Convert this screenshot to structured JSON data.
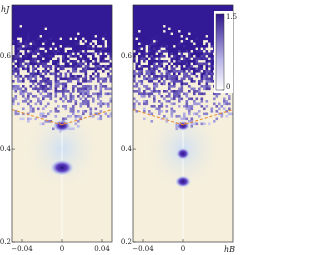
{
  "chart_data": [
    {
      "type": "heatmap",
      "ylabel": "hJ",
      "xlim": [
        -0.05,
        0.05
      ],
      "ylim": [
        0.2,
        0.71
      ],
      "xticks": [
        {
          "value": -0.04,
          "label": "−0.04"
        },
        0,
        0.04
      ],
      "yticks": [
        0.2,
        0.4,
        0.6
      ]
    },
    {
      "type": "heatmap",
      "xlabel": "hB",
      "xlim": [
        -0.05,
        0.05
      ],
      "ylim": [
        0.2,
        0.71
      ],
      "xticks": [
        {
          "value": -0.04,
          "label": "−0.04"
        },
        0
      ],
      "yticks": [
        0.2,
        0.4,
        0.6
      ],
      "colorbar": {
        "lim": [
          0,
          1.5
        ],
        "ticks": [
          0,
          1.5
        ]
      }
    }
  ]
}
